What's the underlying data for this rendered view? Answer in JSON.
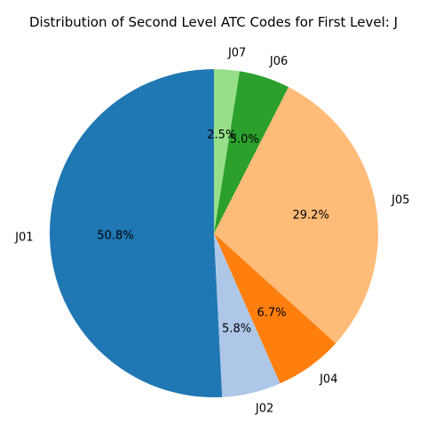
{
  "chart_data": {
    "type": "pie",
    "title": "Distribution of Second Level ATC Codes for First Level: J",
    "start_angle_deg": 90,
    "direction": "counterclockwise",
    "slices": [
      {
        "label": "J01",
        "value": 50.8,
        "pct_text": "50.8%",
        "color": "#1f77b4"
      },
      {
        "label": "J02",
        "value": 5.8,
        "pct_text": "5.8%",
        "color": "#aec7e8"
      },
      {
        "label": "J04",
        "value": 6.7,
        "pct_text": "6.7%",
        "color": "#ff7f0e"
      },
      {
        "label": "J05",
        "value": 29.2,
        "pct_text": "29.2%",
        "color": "#ffbb78"
      },
      {
        "label": "J06",
        "value": 5.0,
        "pct_text": "5.0%",
        "color": "#2ca02c"
      },
      {
        "label": "J07",
        "value": 2.5,
        "pct_text": "2.5%",
        "color": "#98df8a"
      }
    ]
  }
}
